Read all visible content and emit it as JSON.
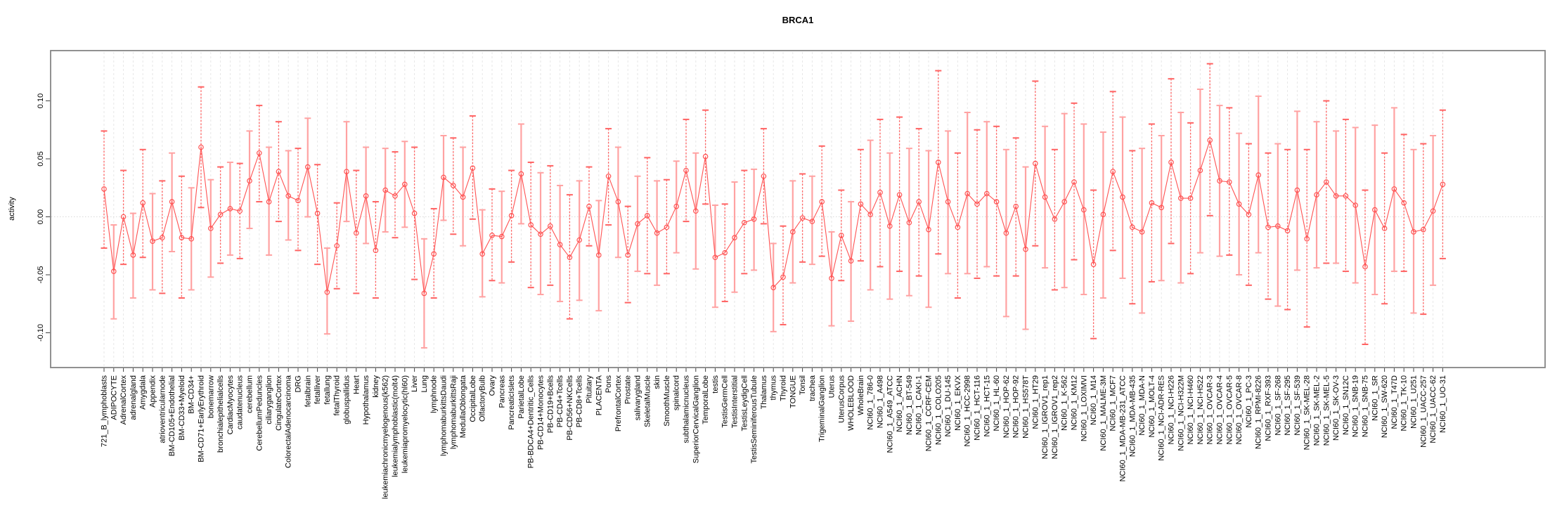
{
  "title": "BRCA1",
  "colors": {
    "whisker_light": "#ffa2a2",
    "whisker_dark": "#ff6363",
    "series_line": "#ff5252",
    "point_stroke": "#ff5252",
    "grid": "#e4e4e4",
    "zero_line": "#d9d9d9",
    "box": "#858585",
    "tick": "#404040",
    "text": "#000000",
    "background": "#ffffff"
  },
  "chart_data": {
    "type": "line",
    "subtype": "points-with-error-bars",
    "title": "BRCA1",
    "xlabel": "",
    "ylabel": "activity",
    "legend": "none",
    "grid": "vertical-dashed-gridlines-plus-dotted-zero-line",
    "yticks": [
      -0.1,
      -0.05,
      0.0,
      0.05,
      0.1
    ],
    "ylim": [
      -0.13,
      0.143
    ],
    "categories": [
      "721_B_lymphoblasts",
      "ADIPOCYTE",
      "AdrenalCortex",
      "adrenalgland",
      "Amygdala",
      "Appendix",
      "atrioventricularnode",
      "BM-CD105+Endothelial",
      "BM-CD33+Myeloid",
      "BM-CD34+",
      "BM-CD71+EarlyErythroid",
      "bonemarrow",
      "bronchialepithelialcells",
      "CardiacMyocytes",
      "caudatenucleus",
      "cerebellum",
      "CerebellumPeduncles",
      "ciliaryganglion",
      "CingulateCortex",
      "ColorectalAdenocarcinoma",
      "DRG",
      "fetalbrain",
      "fetalliver",
      "fetallung",
      "fetalThyroid",
      "globuspallidus",
      "Heart",
      "Hypothalamus",
      "kidney",
      "leukemiachronicmyelogenous(k562)",
      "leukemialymphoblastic(molt4)",
      "leukemiapromyelocytic(hl60)",
      "Liver",
      "Lung",
      "lymphnode",
      "lymphomaburkittsDaudi",
      "lymphomaburkittsRaji",
      "MedullaOblongata",
      "OccipitalLobe",
      "OlfactoryBulb",
      "Ovary",
      "Pancreas",
      "PancreaticIslets",
      "ParietalLobe",
      "PB-BDCA4+Dentritic_Cells",
      "PB-CD14+Monocytes",
      "PB-CD19+Bcells",
      "PB-CD4+Tcells",
      "PB-CD56+NKCells",
      "PB-CD8+Tcells",
      "Pituitary",
      "PLACENTA",
      "Pons",
      "PrefrontalCortex",
      "Prostate",
      "salivarygland",
      "SkeletalMuscle",
      "skin",
      "SmoothMuscle",
      "spinalcord",
      "subthalamicnucleus",
      "SuperiorCervicalGanglion",
      "TemporalLobe",
      "testis",
      "TestisGermCell",
      "TestisInterstitial",
      "TestisLeydigCell",
      "TestisSeminiferousTubule",
      "Thalamus",
      "thymus",
      "Thyroid",
      "TONGUE",
      "Tonsil",
      "trachea",
      "TrigeminalGanglion",
      "Uterus",
      "UterusCorpus",
      "WHOLEBLOOD",
      "WholeBrain",
      "NCI60_1_786-0",
      "NCI60_1_A498",
      "NCI60_1_A549_ATCC",
      "NCI60_1_ACHN",
      "NCI60_1_BT-549",
      "NCI60_1_CAKI-1",
      "NCI60_1_CCRF-CEM",
      "NCI60_1_COLO205",
      "NCI60_1_DU-145",
      "NCI60_1_EKVX",
      "NCI60_1_HCC-2998",
      "NCI60_1_HCT-116",
      "NCI60_1_HCT-15",
      "NCI60_1_HL-60",
      "NCI60_1_HOP-62",
      "NCI60_1_HOP-92",
      "NCI60_1_HS578T",
      "NCI60_1_HT29",
      "NCI60_1_IGROV1_rep1",
      "NCI60_1_IGROV1_rep2",
      "NCI60_1_K-562",
      "NCI60_1_KM12",
      "NCI60_1_LOXIMVI",
      "NCI60_1_M14",
      "NCI60_1_MALME-3M",
      "NCI60_1_MCF7",
      "NCI60_1_MDA-MB-231_ATCC",
      "NCI60_1_MDA-MB-435",
      "NCI60_1_MDA-N",
      "NCI60_1_MOLT-4",
      "NCI60_1_NCI-ADR-RES",
      "NCI60_1_NCI-H226",
      "NCI60_1_NCI-H322M",
      "NCI60_1_NCI-H460",
      "NCI60_1_NCI-H522",
      "NCI60_1_OVCAR-3",
      "NCI60_1_OVCAR-4",
      "NCI60_1_OVCAR-5",
      "NCI60_1_OVCAR-8",
      "NCI60_1_PC-3",
      "NCI60_1_RPMI-8226",
      "NCI60_1_RXF-393",
      "NCI60_1_SF-268",
      "NCI60_1_SF-295",
      "NCI60_1_SF-539",
      "NCI60_1_SK-MEL-28",
      "NCI60_1_SK-MEL-2",
      "NCI60_1_SK-MEL-5",
      "NCI60_1_SK-OV-3",
      "NCI60_1_SN12C",
      "NCI60_1_SNB-19",
      "NCI60_1_SNB-75",
      "NCI60_1_SR",
      "NCI60_1_SW-620",
      "NCI60_1_T47D",
      "NCI60_1_TK-10",
      "NCI60_1_U251",
      "NCI60_1_UACC-257",
      "NCI60_1_UACC-62",
      "NCI60_1_UO-31"
    ],
    "series": [
      {
        "name": "activity",
        "role": "center",
        "values": [
          0.024,
          -0.047,
          0.0,
          -0.033,
          0.012,
          -0.021,
          -0.018,
          0.013,
          -0.018,
          -0.019,
          0.06,
          -0.01,
          0.002,
          0.007,
          0.005,
          0.031,
          0.055,
          0.013,
          0.039,
          0.018,
          0.014,
          0.043,
          0.003,
          -0.065,
          -0.025,
          0.039,
          -0.014,
          0.018,
          -0.029,
          0.023,
          0.018,
          0.028,
          0.003,
          -0.066,
          -0.032,
          0.034,
          0.027,
          0.017,
          0.042,
          -0.032,
          -0.016,
          -0.017,
          0.001,
          0.037,
          -0.007,
          -0.015,
          -0.008,
          -0.024,
          -0.035,
          -0.02,
          0.009,
          -0.033,
          0.035,
          0.013,
          -0.033,
          -0.006,
          0.001,
          -0.014,
          -0.009,
          0.009,
          0.04,
          0.005,
          0.052,
          -0.035,
          -0.031,
          -0.018,
          -0.005,
          -0.002,
          0.035,
          -0.061,
          -0.052,
          -0.013,
          -0.001,
          -0.004,
          0.013,
          -0.053,
          -0.016,
          -0.038,
          0.011,
          0.002,
          0.021,
          -0.008,
          0.019,
          -0.005,
          0.013,
          -0.011,
          0.047,
          0.013,
          -0.009,
          0.02,
          0.011,
          0.02,
          0.013,
          -0.014,
          0.009,
          -0.028,
          0.046,
          0.017,
          -0.002,
          0.013,
          0.03,
          0.006,
          -0.041,
          0.002,
          0.039,
          0.017,
          -0.009,
          -0.013,
          0.012,
          0.008,
          0.047,
          0.016,
          0.016,
          0.04,
          0.066,
          0.031,
          0.03,
          0.011,
          0.002,
          0.036,
          -0.009,
          -0.008,
          -0.012,
          0.023,
          -0.019,
          0.019,
          0.03,
          0.018,
          0.018,
          0.01,
          -0.043,
          0.006,
          -0.01,
          0.024,
          0.012,
          -0.013,
          -0.011,
          0.005,
          0.028
        ]
      },
      {
        "name": "lower_bound",
        "role": "error-low",
        "values": [
          -0.027,
          -0.088,
          -0.041,
          -0.07,
          -0.035,
          -0.063,
          -0.066,
          -0.03,
          -0.07,
          -0.063,
          0.008,
          -0.052,
          -0.04,
          -0.033,
          -0.036,
          -0.01,
          0.013,
          -0.033,
          -0.004,
          -0.02,
          -0.029,
          0.0,
          -0.041,
          -0.101,
          -0.062,
          -0.004,
          -0.066,
          -0.023,
          -0.07,
          -0.013,
          -0.018,
          -0.009,
          -0.054,
          -0.113,
          -0.07,
          -0.003,
          -0.015,
          -0.025,
          -0.002,
          -0.069,
          -0.055,
          -0.057,
          -0.039,
          -0.006,
          -0.061,
          -0.067,
          -0.059,
          -0.073,
          -0.088,
          -0.072,
          -0.025,
          -0.081,
          -0.007,
          -0.035,
          -0.074,
          -0.047,
          -0.049,
          -0.059,
          -0.049,
          -0.031,
          -0.004,
          -0.045,
          0.011,
          -0.078,
          -0.073,
          -0.065,
          -0.049,
          -0.046,
          -0.006,
          -0.099,
          -0.093,
          -0.057,
          -0.039,
          -0.041,
          -0.034,
          -0.094,
          -0.055,
          -0.09,
          -0.038,
          -0.063,
          -0.043,
          -0.071,
          -0.047,
          -0.068,
          -0.051,
          -0.078,
          -0.032,
          -0.049,
          -0.07,
          -0.049,
          -0.053,
          -0.043,
          -0.051,
          -0.086,
          -0.051,
          -0.097,
          -0.025,
          -0.044,
          -0.063,
          -0.061,
          -0.037,
          -0.067,
          -0.105,
          -0.07,
          -0.029,
          -0.053,
          -0.075,
          -0.083,
          -0.056,
          -0.055,
          -0.023,
          -0.057,
          -0.049,
          -0.031,
          0.001,
          -0.034,
          -0.033,
          -0.05,
          -0.059,
          -0.031,
          -0.071,
          -0.077,
          -0.08,
          -0.046,
          -0.095,
          -0.044,
          -0.04,
          -0.04,
          -0.047,
          -0.057,
          -0.11,
          -0.067,
          -0.075,
          -0.047,
          -0.047,
          -0.083,
          -0.084,
          -0.059,
          -0.036
        ]
      },
      {
        "name": "upper_bound",
        "role": "error-high",
        "values": [
          0.074,
          -0.007,
          0.04,
          0.003,
          0.058,
          0.02,
          0.031,
          0.055,
          0.035,
          0.025,
          0.112,
          0.032,
          0.043,
          0.047,
          0.046,
          0.074,
          0.096,
          0.06,
          0.082,
          0.057,
          0.059,
          0.085,
          0.045,
          -0.027,
          0.012,
          0.082,
          0.04,
          0.06,
          0.013,
          0.059,
          0.056,
          0.065,
          0.06,
          -0.019,
          0.007,
          0.07,
          0.068,
          0.06,
          0.087,
          0.006,
          0.024,
          0.022,
          0.04,
          0.08,
          0.047,
          0.038,
          0.044,
          0.027,
          0.019,
          0.031,
          0.043,
          0.014,
          0.076,
          0.06,
          0.009,
          0.035,
          0.051,
          0.031,
          0.032,
          0.048,
          0.084,
          0.055,
          0.092,
          0.01,
          0.011,
          0.03,
          0.04,
          0.041,
          0.076,
          -0.023,
          -0.008,
          0.031,
          0.037,
          0.035,
          0.061,
          -0.013,
          0.023,
          0.013,
          0.058,
          0.066,
          0.084,
          0.055,
          0.086,
          0.059,
          0.076,
          0.057,
          0.126,
          0.074,
          0.055,
          0.09,
          0.075,
          0.082,
          0.078,
          0.058,
          0.068,
          0.043,
          0.117,
          0.078,
          0.058,
          0.089,
          0.098,
          0.08,
          0.023,
          0.073,
          0.108,
          0.086,
          0.057,
          0.059,
          0.08,
          0.07,
          0.119,
          0.09,
          0.081,
          0.11,
          0.132,
          0.096,
          0.094,
          0.072,
          0.063,
          0.104,
          0.055,
          0.063,
          0.058,
          0.091,
          0.058,
          0.082,
          0.1,
          0.074,
          0.084,
          0.077,
          0.023,
          0.079,
          0.055,
          0.094,
          0.071,
          0.058,
          0.063,
          0.07,
          0.092
        ]
      }
    ]
  }
}
